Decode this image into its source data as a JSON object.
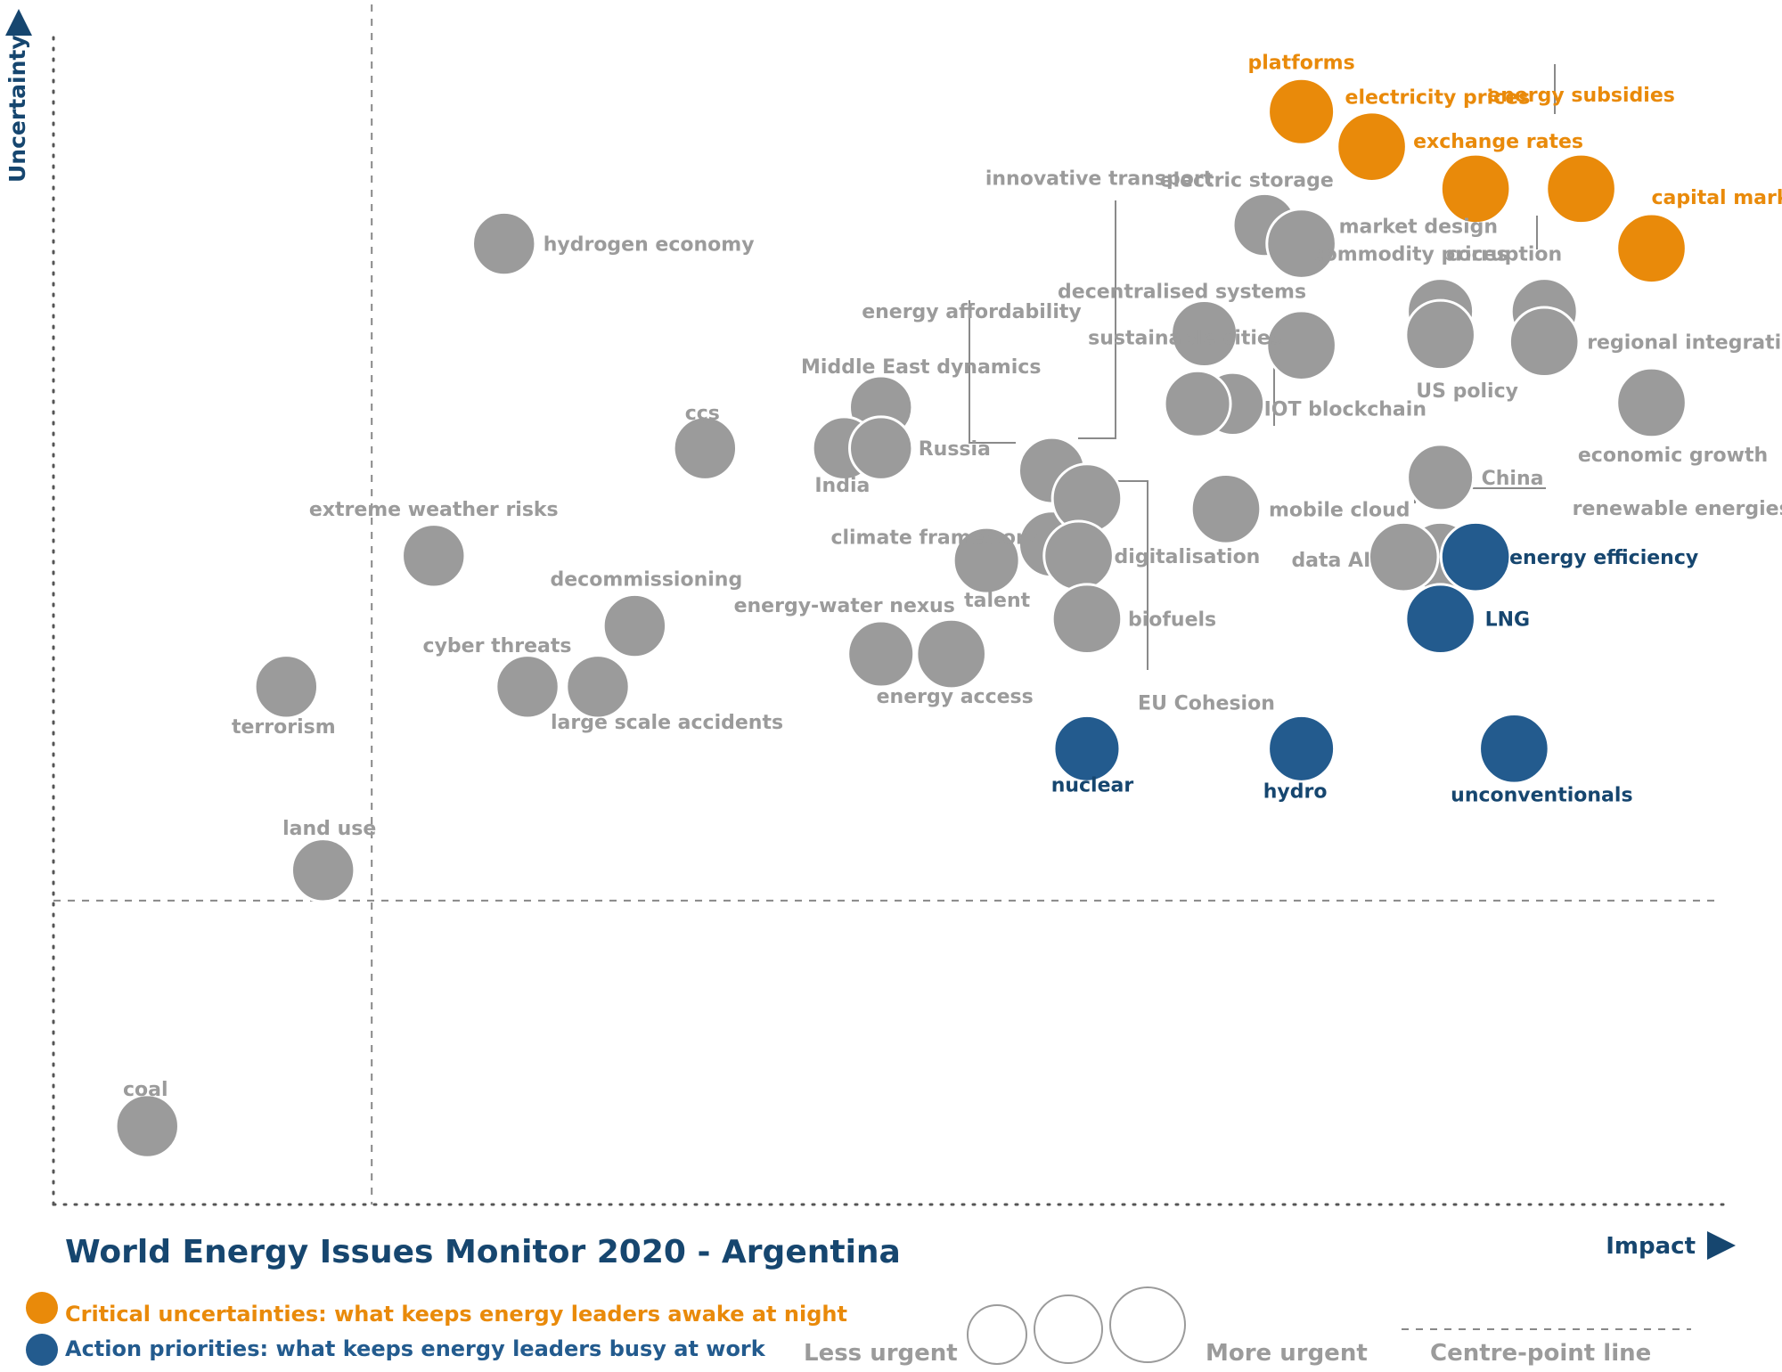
{
  "colors": {
    "critical": "#E98A0A",
    "action": "#235B8E",
    "other": "#9B9B9B",
    "title": "#16466F",
    "label_grey": "#9B9B9B"
  },
  "legend": {
    "critical_text": "Critical uncertainties: what keeps energy leaders awake at night",
    "action_text": "Action priorities: what keeps energy leaders busy at work",
    "less_urgent": "Less urgent",
    "more_urgent": "More urgent",
    "centre_line": "Centre-point  line"
  },
  "chart_data": {
    "type": "scatter",
    "title": "World Energy Issues Monitor 2020 - Argentina",
    "xlabel": "Impact",
    "ylabel": "Uncertainty",
    "xlim": [
      0,
      100
    ],
    "ylim": [
      0,
      100
    ],
    "centre_point": {
      "x": 19,
      "y": 26
    },
    "size_scale": [
      "Less urgent",
      "More urgent"
    ],
    "points": [
      {
        "label": "platforms",
        "x": 74.5,
        "y": 93.5,
        "size": 0.5,
        "category": "critical"
      },
      {
        "label": "electricity prices",
        "x": 78.7,
        "y": 90.5,
        "size": 0.6,
        "category": "critical"
      },
      {
        "label": "exchange rates",
        "x": 84.9,
        "y": 86.9,
        "size": 0.6,
        "category": "critical"
      },
      {
        "label": "energy subsidies",
        "x": 91.2,
        "y": 86.9,
        "size": 0.6,
        "category": "critical"
      },
      {
        "label": "capital markets",
        "x": 95.4,
        "y": 81.8,
        "size": 0.6,
        "category": "critical"
      },
      {
        "label": "electric storage",
        "x": 72.3,
        "y": 83.8,
        "size": 0.4,
        "category": "other"
      },
      {
        "label": "market design",
        "x": 74.5,
        "y": 82.2,
        "size": 0.6,
        "category": "other"
      },
      {
        "label": "hydrogen economy",
        "x": 26.9,
        "y": 82.2,
        "size": 0.4,
        "category": "other"
      },
      {
        "label": "corruption",
        "x": 89.0,
        "y": 76.4,
        "size": 0.5,
        "category": "other"
      },
      {
        "label": "commodity prices",
        "x": 82.8,
        "y": 76.4,
        "size": 0.5,
        "category": "other"
      },
      {
        "label": "regional integration",
        "x": 89.0,
        "y": 73.8,
        "size": 0.6,
        "category": "other"
      },
      {
        "label": "US policy",
        "x": 82.8,
        "y": 74.4,
        "size": 0.6,
        "category": "other"
      },
      {
        "label": "decentralised systems",
        "x": 68.7,
        "y": 74.5,
        "size": 0.5,
        "category": "other"
      },
      {
        "label": "IOT blockchain",
        "x": 74.5,
        "y": 73.5,
        "size": 0.6,
        "category": "other"
      },
      {
        "label": "innovative transport",
        "x": 70.4,
        "y": 68.5,
        "size": 0.4,
        "category": "other"
      },
      {
        "label": "sustainable cities",
        "x": 68.3,
        "y": 68.5,
        "size": 0.5,
        "category": "other"
      },
      {
        "label": "economic growth",
        "x": 95.4,
        "y": 68.6,
        "size": 0.6,
        "category": "other"
      },
      {
        "label": "ccs",
        "x": 38.9,
        "y": 64.7,
        "size": 0.4,
        "category": "other"
      },
      {
        "label": "Middle East dynamics",
        "x": 49.4,
        "y": 68.2,
        "size": 0.4,
        "category": "other"
      },
      {
        "label": "India",
        "x": 47.2,
        "y": 64.7,
        "size": 0.4,
        "category": "other"
      },
      {
        "label": "Russia",
        "x": 49.4,
        "y": 64.7,
        "size": 0.4,
        "category": "other"
      },
      {
        "label": "energy affordability",
        "x": 59.6,
        "y": 62.8,
        "size": 0.5,
        "category": "other"
      },
      {
        "label": "climate framework",
        "x": 59.6,
        "y": 56.5,
        "size": 0.5,
        "category": "other"
      },
      {
        "label": "China",
        "x": 82.8,
        "y": 62.2,
        "size": 0.5,
        "category": "other"
      },
      {
        "label": "EU Cohesion",
        "x": 61.7,
        "y": 60.4,
        "size": 0.6,
        "category": "other"
      },
      {
        "label": "mobile cloud",
        "x": 70.0,
        "y": 59.5,
        "size": 0.6,
        "category": "other"
      },
      {
        "label": "digitalisation",
        "x": 61.2,
        "y": 55.5,
        "size": 0.6,
        "category": "other"
      },
      {
        "label": "renewable energies",
        "x": 82.8,
        "y": 55.4,
        "size": 0.6,
        "category": "other"
      },
      {
        "label": "energy efficiency",
        "x": 84.9,
        "y": 55.4,
        "size": 0.6,
        "category": "action"
      },
      {
        "label": "data AI",
        "x": 80.6,
        "y": 55.4,
        "size": 0.6,
        "category": "other"
      },
      {
        "label": "extreme weather risks",
        "x": 22.7,
        "y": 55.5,
        "size": 0.4,
        "category": "other"
      },
      {
        "label": "talent",
        "x": 55.7,
        "y": 55.1,
        "size": 0.5,
        "category": "other"
      },
      {
        "label": "decommissioning",
        "x": 34.7,
        "y": 49.5,
        "size": 0.4,
        "category": "other"
      },
      {
        "label": "biofuels",
        "x": 61.7,
        "y": 50.1,
        "size": 0.6,
        "category": "other"
      },
      {
        "label": "LNG",
        "x": 82.8,
        "y": 50.1,
        "size": 0.6,
        "category": "action"
      },
      {
        "label": "energy-water nexus",
        "x": 49.4,
        "y": 47.1,
        "size": 0.5,
        "category": "other"
      },
      {
        "label": "energy access",
        "x": 53.6,
        "y": 47.1,
        "size": 0.6,
        "category": "other"
      },
      {
        "label": "cyber threats",
        "x": 28.3,
        "y": 44.3,
        "size": 0.4,
        "category": "other"
      },
      {
        "label": "large scale accidents",
        "x": 32.5,
        "y": 44.3,
        "size": 0.4,
        "category": "other"
      },
      {
        "label": "terrorism",
        "x": 13.9,
        "y": 44.3,
        "size": 0.4,
        "category": "other"
      },
      {
        "label": "nuclear",
        "x": 61.7,
        "y": 39.0,
        "size": 0.5,
        "category": "action"
      },
      {
        "label": "hydro",
        "x": 74.5,
        "y": 39.0,
        "size": 0.5,
        "category": "action"
      },
      {
        "label": "unconventionals",
        "x": 87.2,
        "y": 39.0,
        "size": 0.6,
        "category": "action"
      },
      {
        "label": "land use",
        "x": 16.1,
        "y": 28.6,
        "size": 0.4,
        "category": "other"
      },
      {
        "label": "coal",
        "x": 5.6,
        "y": 6.7,
        "size": 0.4,
        "category": "other"
      }
    ]
  }
}
